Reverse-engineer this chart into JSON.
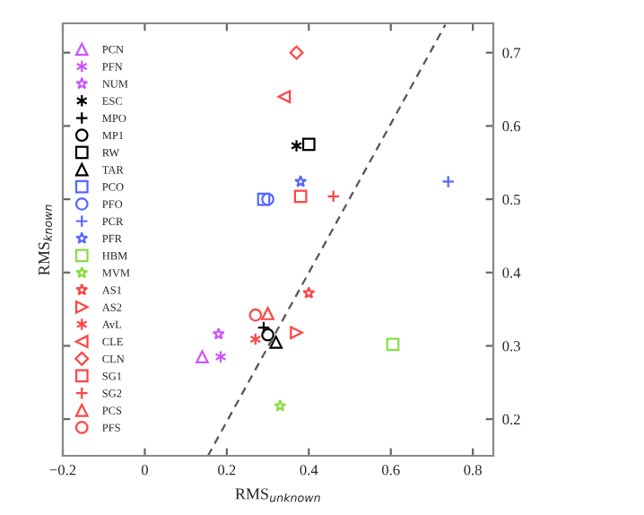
{
  "chart_data": {
    "type": "scatter",
    "xlabel": "RMS$_{unknown}$",
    "ylabel": "RMS$_{known}$",
    "xlim": [
      -0.2,
      0.85
    ],
    "ylim": [
      0.15,
      0.74
    ],
    "xticks": [
      {
        "value": -0.2,
        "label": "−0.2"
      },
      0,
      0.2,
      0.4,
      0.6,
      0.8
    ],
    "yticks": [
      0.2,
      0.3,
      0.4,
      0.5,
      0.6,
      0.7
    ],
    "grid": false,
    "legend": "left",
    "series": [
      {
        "name": "PCN",
        "color": "#cc55ff",
        "marker": "triangle",
        "x": [
          0.14
        ],
        "values": [
          0.285
        ]
      },
      {
        "name": "PFN",
        "color": "#cc55ff",
        "marker": "cross",
        "x": [
          0.185
        ],
        "values": [
          0.285
        ]
      },
      {
        "name": "NUM",
        "color": "#cc55ff",
        "marker": "star",
        "x": [
          0.18
        ],
        "values": [
          0.316
        ]
      },
      {
        "name": "ESC",
        "color": "#000000",
        "marker": "cross",
        "x": [
          0.37
        ],
        "values": [
          0.573
        ]
      },
      {
        "name": "MPO",
        "color": "#000000",
        "marker": "plus",
        "x": [
          0.29
        ],
        "values": [
          0.325
        ]
      },
      {
        "name": "MP1",
        "color": "#000000",
        "marker": "circle",
        "x": [
          0.3
        ],
        "values": [
          0.315
        ]
      },
      {
        "name": "RW",
        "color": "#000000",
        "marker": "square",
        "x": [
          0.4
        ],
        "values": [
          0.575
        ]
      },
      {
        "name": "TAR",
        "color": "#000000",
        "marker": "triangle",
        "x": [
          0.32
        ],
        "values": [
          0.305
        ]
      },
      {
        "name": "PCO",
        "color": "#5566ff",
        "marker": "square",
        "x": [
          0.29
        ],
        "values": [
          0.5
        ]
      },
      {
        "name": "PFO",
        "color": "#5566ff",
        "marker": "circle",
        "x": [
          0.3
        ],
        "values": [
          0.5
        ]
      },
      {
        "name": "PCR",
        "color": "#5566ff",
        "marker": "plus",
        "x": [
          0.74
        ],
        "values": [
          0.524
        ]
      },
      {
        "name": "PFR",
        "color": "#5566ff",
        "marker": "star",
        "x": [
          0.38
        ],
        "values": [
          0.524
        ]
      },
      {
        "name": "HBM",
        "color": "#88dd44",
        "marker": "square",
        "x": [
          0.605
        ],
        "values": [
          0.302
        ]
      },
      {
        "name": "MVM",
        "color": "#88dd44",
        "marker": "star",
        "x": [
          0.33
        ],
        "values": [
          0.218
        ]
      },
      {
        "name": "AS1",
        "color": "#ff4444",
        "marker": "star",
        "x": [
          0.4
        ],
        "values": [
          0.372
        ]
      },
      {
        "name": "AS2",
        "color": "#ff4444",
        "marker": "triangle-right",
        "x": [
          0.37
        ],
        "values": [
          0.318
        ]
      },
      {
        "name": "AvL",
        "color": "#ff4444",
        "marker": "cross",
        "x": [
          0.27
        ],
        "values": [
          0.309
        ]
      },
      {
        "name": "CLE",
        "color": "#ff4444",
        "marker": "triangle-left",
        "x": [
          0.34
        ],
        "values": [
          0.64
        ]
      },
      {
        "name": "CLN",
        "color": "#ff4444",
        "marker": "diamond",
        "x": [
          0.37
        ],
        "values": [
          0.7
        ]
      },
      {
        "name": "SG1",
        "color": "#ff4444",
        "marker": "square",
        "x": [
          0.38
        ],
        "values": [
          0.504
        ]
      },
      {
        "name": "SG2",
        "color": "#ff4444",
        "marker": "plus",
        "x": [
          0.46
        ],
        "values": [
          0.504
        ]
      },
      {
        "name": "PCS",
        "color": "#ff4444",
        "marker": "triangle",
        "x": [
          0.3
        ],
        "values": [
          0.344
        ]
      },
      {
        "name": "PFS",
        "color": "#ff4444",
        "marker": "circle",
        "x": [
          0.27
        ],
        "values": [
          0.342
        ]
      },
      {
        "type": "line",
        "color": "#555555",
        "line_style": "dashed",
        "x": [
          0.154,
          0.733
        ],
        "values": [
          0.15,
          0.738
        ]
      }
    ]
  }
}
